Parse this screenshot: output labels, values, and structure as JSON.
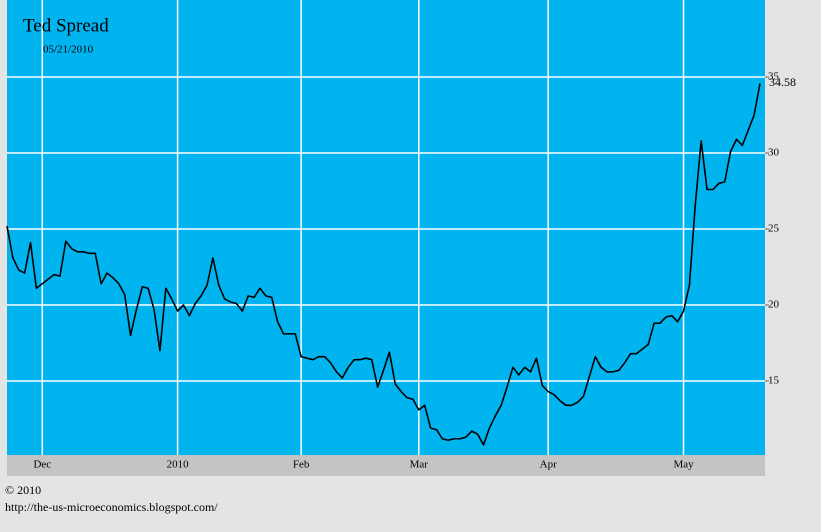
{
  "chart_data": {
    "type": "line",
    "title": "Ted Spread",
    "subtitle": "05/21/2010",
    "copyright": "© 2010",
    "source": "http://the-us-microeconomics.blogspot.com/",
    "categories": [
      null,
      null,
      null,
      null,
      null,
      null,
      "Dec",
      null,
      null,
      null,
      null,
      null,
      null,
      null,
      null,
      null,
      null,
      null,
      null,
      null,
      null,
      null,
      null,
      null,
      null,
      null,
      null,
      null,
      null,
      "2010",
      null,
      null,
      null,
      null,
      null,
      null,
      null,
      null,
      null,
      null,
      null,
      null,
      null,
      null,
      null,
      null,
      null,
      null,
      null,
      null,
      "Feb",
      null,
      null,
      null,
      null,
      null,
      null,
      null,
      null,
      null,
      null,
      null,
      null,
      null,
      null,
      null,
      null,
      null,
      null,
      null,
      "Mar",
      null,
      null,
      null,
      null,
      null,
      null,
      null,
      null,
      null,
      null,
      null,
      null,
      null,
      null,
      null,
      null,
      null,
      null,
      null,
      null,
      null,
      "Apr",
      null,
      null,
      null,
      null,
      null,
      null,
      null,
      null,
      null,
      null,
      null,
      null,
      null,
      null,
      null,
      null,
      null,
      null,
      null,
      null,
      null,
      null,
      "May",
      null,
      null,
      null,
      null,
      null,
      null,
      null,
      null,
      null,
      null,
      null,
      null,
      null
    ],
    "values": [
      25.2,
      23.1,
      22.3,
      22.1,
      24.1,
      21.1,
      21.4,
      21.7,
      22.0,
      21.9,
      24.2,
      23.7,
      23.5,
      23.5,
      23.4,
      23.4,
      21.4,
      22.1,
      21.8,
      21.4,
      20.7,
      18.0,
      19.7,
      21.2,
      21.1,
      19.7,
      17.0,
      21.1,
      20.4,
      19.6,
      20.0,
      19.3,
      20.1,
      20.6,
      21.3,
      23.1,
      21.3,
      20.4,
      20.2,
      20.1,
      19.6,
      20.6,
      20.5,
      21.1,
      20.6,
      20.5,
      18.9,
      18.1,
      18.1,
      18.1,
      16.6,
      16.5,
      16.4,
      16.6,
      16.6,
      16.2,
      15.6,
      15.2,
      15.9,
      16.4,
      16.4,
      16.5,
      16.4,
      14.6,
      15.7,
      16.9,
      14.8,
      14.3,
      13.9,
      13.8,
      13.1,
      13.4,
      11.9,
      11.8,
      11.2,
      11.1,
      11.2,
      11.2,
      11.3,
      11.7,
      11.5,
      10.8,
      11.9,
      12.7,
      13.4,
      14.6,
      15.9,
      15.4,
      15.9,
      15.6,
      16.5,
      14.7,
      14.3,
      14.1,
      13.7,
      13.4,
      13.4,
      13.6,
      14.0,
      15.3,
      16.6,
      15.9,
      15.6,
      15.6,
      15.7,
      16.2,
      16.8,
      16.8,
      17.1,
      17.4,
      18.8,
      18.8,
      19.2,
      19.3,
      18.9,
      19.6,
      21.3,
      26.6,
      30.8,
      27.6,
      27.6,
      28.0,
      28.1,
      30.1,
      30.9,
      30.5,
      31.5,
      32.5,
      34.58
    ],
    "color": "#000000",
    "background": "#00b4f0",
    "ylim": [
      10.13,
      40.07
    ],
    "yticks": [
      15,
      20,
      25,
      30,
      35
    ],
    "grid": true
  }
}
